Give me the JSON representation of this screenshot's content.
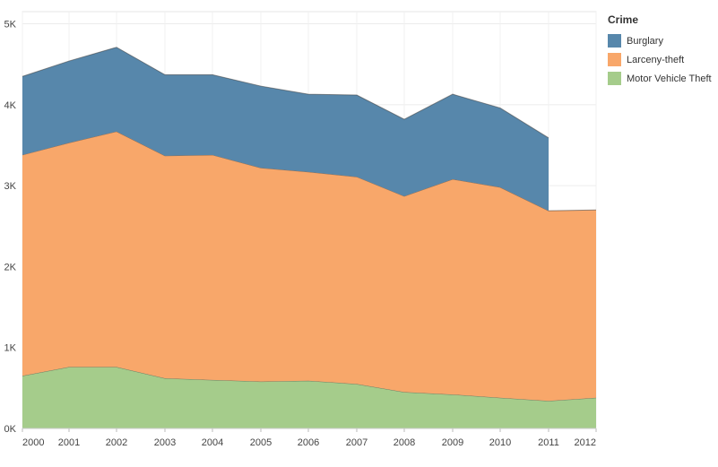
{
  "chart_data": {
    "type": "area",
    "stacked": true,
    "x": [
      "2000",
      "2001",
      "2002",
      "2003",
      "2004",
      "2005",
      "2006",
      "2007",
      "2008",
      "2009",
      "2010",
      "2011",
      "2012"
    ],
    "series": [
      {
        "name": "Motor Vehicle Theft",
        "color": "#a5cc8b",
        "values": [
          650,
          760,
          760,
          620,
          600,
          580,
          590,
          550,
          450,
          420,
          380,
          340,
          380
        ]
      },
      {
        "name": "Larceny-theft",
        "color": "#f8a76a",
        "values": [
          2730,
          2770,
          2910,
          2750,
          2780,
          2640,
          2580,
          2560,
          2420,
          2660,
          2600,
          2350,
          2320
        ]
      },
      {
        "name": "Burglary",
        "color": "#5787ab",
        "values": [
          970,
          1010,
          1040,
          1000,
          990,
          1010,
          960,
          1010,
          950,
          1050,
          980,
          900,
          null
        ]
      }
    ],
    "ylim": [
      0,
      5150
    ],
    "yticks": [
      0,
      1000,
      2000,
      3000,
      4000,
      5000
    ],
    "ytick_labels": [
      "0K",
      "1K",
      "2K",
      "3K",
      "4K",
      "5K"
    ],
    "grid": true,
    "legend": {
      "title": "Crime",
      "placement": "right",
      "order": [
        "Burglary",
        "Larceny-theft",
        "Motor Vehicle Theft"
      ]
    }
  }
}
